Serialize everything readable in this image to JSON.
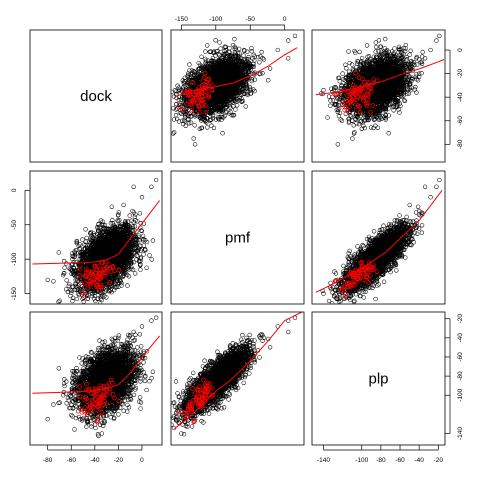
{
  "chart_data": {
    "type": "scatter",
    "kind": "scatterplot-matrix",
    "variables": [
      "dock",
      "pmf",
      "plp"
    ],
    "panel_ranges": {
      "dock": [
        -95,
        17
      ],
      "pmf": [
        -165,
        28
      ],
      "plp": [
        -152,
        -13
      ]
    },
    "axis_ticks": {
      "dock": [
        -80,
        -60,
        -40,
        -20,
        0
      ],
      "pmf": [
        -150,
        -100,
        -50,
        0
      ],
      "plp": [
        -140,
        -100,
        -80,
        -60,
        -40,
        -20
      ]
    },
    "axis_tick_labels": {
      "dock": [
        "-80",
        "-60",
        "-40",
        "-20",
        "0"
      ],
      "pmf": [
        "-150",
        "-100",
        "-50",
        "0"
      ],
      "plp": [
        "-140",
        "-100",
        "-80",
        "-60",
        "-40",
        "-20"
      ]
    },
    "axis_sides": {
      "top": "pmf",
      "right": "plp",
      "bottom": "dock",
      "left": "pmf"
    },
    "series": [
      {
        "color": "#000000",
        "marker": "open-circle",
        "approx_count": 3000,
        "points": [
          {
            "dock": -30,
            "pmf": -95,
            "plp": -82
          },
          {
            "dock": -24,
            "pmf": -88,
            "plp": -76
          },
          {
            "dock": -42,
            "pmf": -110,
            "plp": -96
          },
          {
            "dock": -18,
            "pmf": -70,
            "plp": -64
          },
          {
            "dock": -36,
            "pmf": -104,
            "plp": -90
          },
          {
            "dock": -12,
            "pmf": -60,
            "plp": -55
          },
          {
            "dock": -50,
            "pmf": -120,
            "plp": -104
          },
          {
            "dock": -28,
            "pmf": -80,
            "plp": -72
          },
          {
            "dock": -8,
            "pmf": -30,
            "plp": -40
          },
          {
            "dock": 0,
            "pmf": -10,
            "plp": -28
          },
          {
            "dock": 8,
            "pmf": 5,
            "plp": -22
          },
          {
            "dock": 12,
            "pmf": 15,
            "plp": -19
          },
          {
            "dock": -20,
            "pmf": -140,
            "plp": -120
          },
          {
            "dock": -38,
            "pmf": -145,
            "plp": -128
          },
          {
            "dock": -60,
            "pmf": -115,
            "plp": -110
          },
          {
            "dock": -80,
            "pmf": -130,
            "plp": -125
          },
          {
            "dock": -4,
            "pmf": -45,
            "plp": -50
          },
          {
            "dock": -46,
            "pmf": -92,
            "plp": -70
          },
          {
            "dock": -34,
            "pmf": -150,
            "plp": -140
          },
          {
            "dock": -16,
            "pmf": -100,
            "plp": -92
          }
        ]
      },
      {
        "color": "#ff0000",
        "marker": "open-circle",
        "approx_count": 60,
        "points": [
          {
            "dock": -36,
            "pmf": -120,
            "plp": -98
          },
          {
            "dock": -40,
            "pmf": -128,
            "plp": -104
          },
          {
            "dock": -32,
            "pmf": -115,
            "plp": -96
          },
          {
            "dock": -44,
            "pmf": -132,
            "plp": -108
          },
          {
            "dock": -38,
            "pmf": -138,
            "plp": -112
          },
          {
            "dock": -30,
            "pmf": -112,
            "plp": -90
          },
          {
            "dock": -48,
            "pmf": -125,
            "plp": -102
          },
          {
            "dock": -34,
            "pmf": -140,
            "plp": -118
          },
          {
            "dock": -42,
            "pmf": -118,
            "plp": -94
          },
          {
            "dock": -28,
            "pmf": -108,
            "plp": -88
          },
          {
            "dock": -52,
            "pmf": -135,
            "plp": -115
          },
          {
            "dock": -36,
            "pmf": -145,
            "plp": -122
          },
          {
            "dock": -26,
            "pmf": -118,
            "plp": -84
          },
          {
            "dock": -46,
            "pmf": -142,
            "plp": -120
          },
          {
            "dock": -40,
            "pmf": -110,
            "plp": -100
          }
        ]
      }
    ],
    "smoothers": {
      "color": "#ff0000",
      "curves": [
        {
          "x_var": "dock",
          "y_var": "pmf",
          "points": [
            [
              -93,
              -107
            ],
            [
              -70,
              -106
            ],
            [
              -50,
              -105
            ],
            [
              -40,
              -104
            ],
            [
              -30,
              -101
            ],
            [
              -20,
              -93
            ],
            [
              -10,
              -70
            ],
            [
              0,
              -48
            ],
            [
              15,
              -15
            ]
          ]
        },
        {
          "x_var": "pmf",
          "y_var": "dock",
          "points": [
            [
              -160,
              -40
            ],
            [
              -140,
              -35
            ],
            [
              -120,
              -33
            ],
            [
              -100,
              -31
            ],
            [
              -75,
              -28
            ],
            [
              -50,
              -22
            ],
            [
              -25,
              -14
            ],
            [
              0,
              -4
            ],
            [
              18,
              2
            ]
          ]
        },
        {
          "x_var": "dock",
          "y_var": "plp",
          "points": [
            [
              -93,
              -98
            ],
            [
              -70,
              -97
            ],
            [
              -50,
              -96
            ],
            [
              -40,
              -95
            ],
            [
              -30,
              -93
            ],
            [
              -20,
              -89
            ],
            [
              -10,
              -77
            ],
            [
              0,
              -60
            ],
            [
              15,
              -38
            ]
          ]
        },
        {
          "x_var": "plp",
          "y_var": "dock",
          "points": [
            [
              -148,
              -38
            ],
            [
              -130,
              -36
            ],
            [
              -110,
              -33
            ],
            [
              -95,
              -30
            ],
            [
              -80,
              -27
            ],
            [
              -60,
              -21
            ],
            [
              -40,
              -16
            ],
            [
              -20,
              -10
            ],
            [
              -14,
              -8
            ]
          ]
        },
        {
          "x_var": "pmf",
          "y_var": "plp",
          "points": [
            [
              -160,
              -135
            ],
            [
              -140,
              -124
            ],
            [
              -120,
              -110
            ],
            [
              -100,
              -96
            ],
            [
              -75,
              -82
            ],
            [
              -50,
              -64
            ],
            [
              -25,
              -44
            ],
            [
              0,
              -22
            ],
            [
              25,
              -13
            ]
          ]
        },
        {
          "x_var": "plp",
          "y_var": "pmf",
          "points": [
            [
              -148,
              -148
            ],
            [
              -130,
              -136
            ],
            [
              -115,
              -124
            ],
            [
              -100,
              -113
            ],
            [
              -90,
              -104
            ],
            [
              -75,
              -90
            ],
            [
              -60,
              -70
            ],
            [
              -40,
              -44
            ],
            [
              -16,
              0
            ]
          ]
        }
      ]
    },
    "grid": false,
    "legend": "none"
  }
}
